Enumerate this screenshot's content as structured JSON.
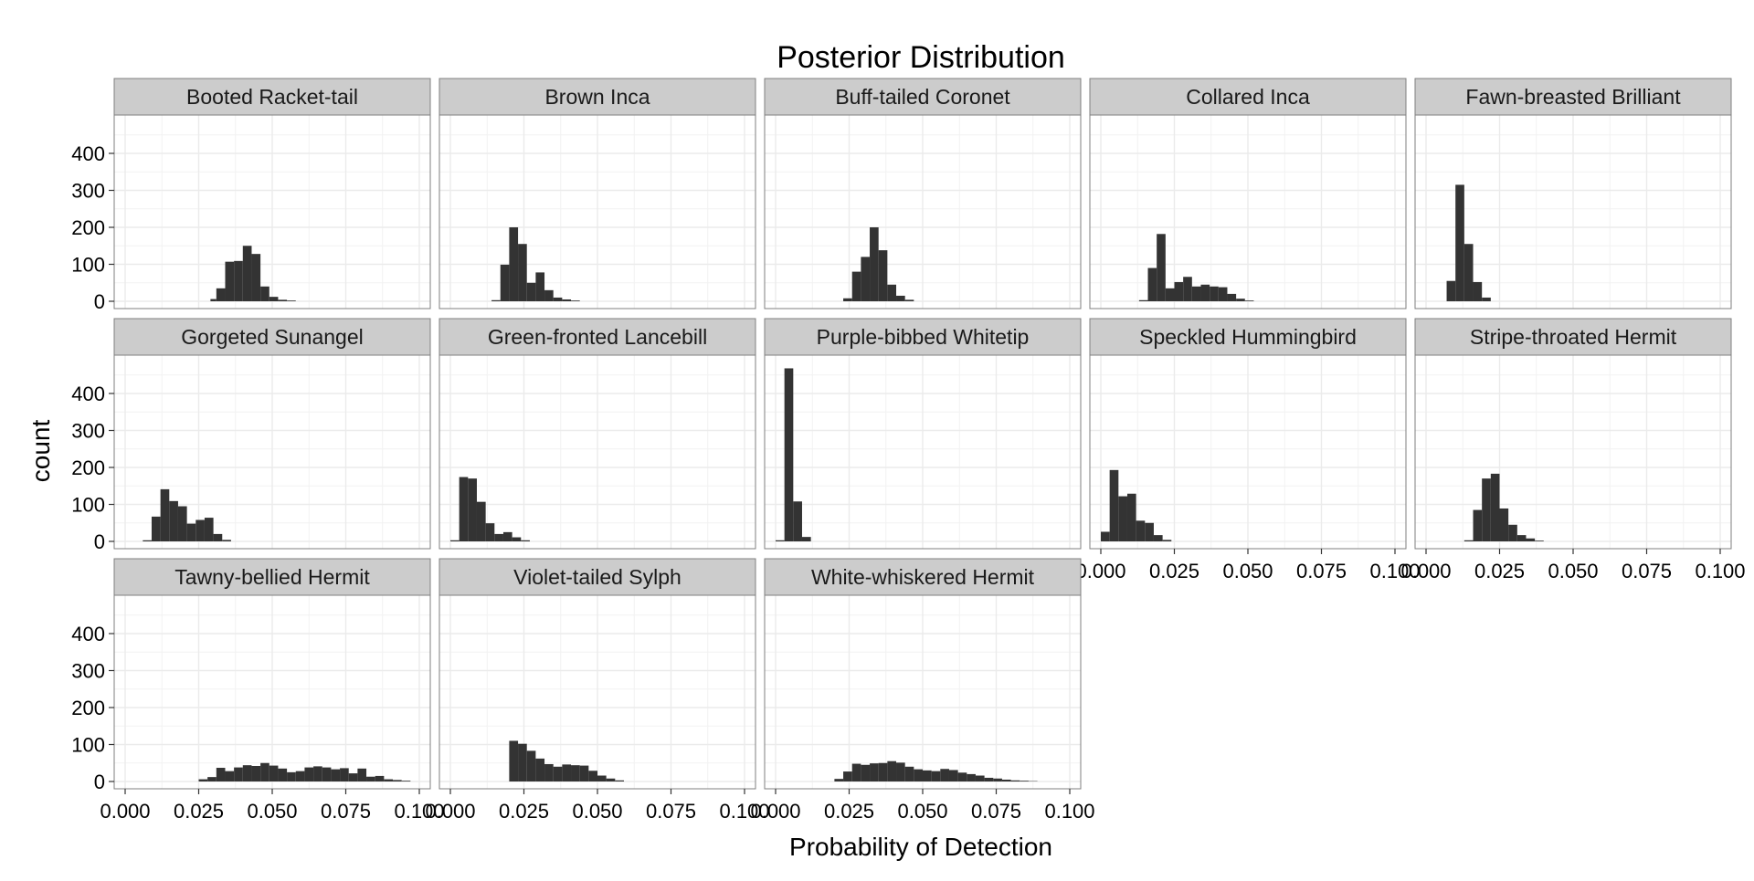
{
  "chart_data": {
    "type": "bar",
    "subtype": "faceted-histogram",
    "title": "Posterior Distribution",
    "xlabel": "Probability of Detection",
    "ylabel": "count",
    "xlim": [
      0,
      0.1
    ],
    "ylim": [
      0,
      500
    ],
    "x_ticks": [
      "0.000",
      "0.025",
      "0.050",
      "0.075",
      "0.100"
    ],
    "x_tick_values": [
      0,
      0.025,
      0.05,
      0.075,
      0.1
    ],
    "y_ticks": [
      "0",
      "100",
      "200",
      "300",
      "400"
    ],
    "y_tick_values": [
      0,
      100,
      200,
      300,
      400
    ],
    "grid": true,
    "bar_color": "#333333",
    "panel_header_color": "#cccccc",
    "gridline_color": "#ebebeb",
    "panels": [
      {
        "name": "Booted Racket-tail",
        "bins": [
          [
            0.029,
            0.031,
            6
          ],
          [
            0.031,
            0.034,
            35
          ],
          [
            0.034,
            0.037,
            107
          ],
          [
            0.037,
            0.04,
            109
          ],
          [
            0.04,
            0.043,
            150
          ],
          [
            0.043,
            0.046,
            128
          ],
          [
            0.046,
            0.049,
            40
          ],
          [
            0.049,
            0.052,
            12
          ],
          [
            0.052,
            0.055,
            4
          ],
          [
            0.055,
            0.058,
            2
          ]
        ]
      },
      {
        "name": "Brown Inca",
        "bins": [
          [
            0.014,
            0.017,
            3
          ],
          [
            0.017,
            0.02,
            99
          ],
          [
            0.02,
            0.023,
            200
          ],
          [
            0.023,
            0.026,
            155
          ],
          [
            0.026,
            0.029,
            50
          ],
          [
            0.029,
            0.032,
            78
          ],
          [
            0.032,
            0.035,
            30
          ],
          [
            0.035,
            0.038,
            10
          ],
          [
            0.038,
            0.041,
            5
          ],
          [
            0.041,
            0.044,
            2
          ]
        ]
      },
      {
        "name": "Buff-tailed Coronet",
        "bins": [
          [
            0.023,
            0.026,
            8
          ],
          [
            0.026,
            0.029,
            80
          ],
          [
            0.029,
            0.032,
            120
          ],
          [
            0.032,
            0.035,
            200
          ],
          [
            0.035,
            0.038,
            138
          ],
          [
            0.038,
            0.041,
            45
          ],
          [
            0.041,
            0.044,
            15
          ],
          [
            0.044,
            0.047,
            4
          ]
        ]
      },
      {
        "name": "Collared Inca",
        "bins": [
          [
            0.013,
            0.016,
            3
          ],
          [
            0.016,
            0.019,
            90
          ],
          [
            0.019,
            0.022,
            182
          ],
          [
            0.022,
            0.025,
            35
          ],
          [
            0.025,
            0.028,
            52
          ],
          [
            0.028,
            0.031,
            66
          ],
          [
            0.031,
            0.034,
            40
          ],
          [
            0.034,
            0.037,
            45
          ],
          [
            0.037,
            0.04,
            40
          ],
          [
            0.04,
            0.043,
            38
          ],
          [
            0.043,
            0.046,
            20
          ],
          [
            0.046,
            0.049,
            7
          ],
          [
            0.049,
            0.052,
            2
          ]
        ]
      },
      {
        "name": "Fawn-breasted Brilliant",
        "bins": [
          [
            0.007,
            0.01,
            55
          ],
          [
            0.01,
            0.013,
            315
          ],
          [
            0.013,
            0.016,
            155
          ],
          [
            0.016,
            0.019,
            52
          ],
          [
            0.019,
            0.022,
            10
          ]
        ]
      },
      {
        "name": "Gorgeted Sunangel",
        "bins": [
          [
            0.006,
            0.009,
            3
          ],
          [
            0.009,
            0.012,
            67
          ],
          [
            0.012,
            0.015,
            141
          ],
          [
            0.015,
            0.018,
            109
          ],
          [
            0.018,
            0.021,
            95
          ],
          [
            0.021,
            0.024,
            48
          ],
          [
            0.024,
            0.027,
            58
          ],
          [
            0.027,
            0.03,
            64
          ],
          [
            0.03,
            0.033,
            20
          ],
          [
            0.033,
            0.036,
            4
          ]
        ]
      },
      {
        "name": "Green-fronted Lancebill",
        "bins": [
          [
            0.0,
            0.003,
            3
          ],
          [
            0.003,
            0.006,
            174
          ],
          [
            0.006,
            0.009,
            170
          ],
          [
            0.009,
            0.012,
            107
          ],
          [
            0.012,
            0.015,
            49
          ],
          [
            0.015,
            0.018,
            20
          ],
          [
            0.018,
            0.021,
            25
          ],
          [
            0.021,
            0.024,
            11
          ],
          [
            0.024,
            0.027,
            3
          ]
        ]
      },
      {
        "name": "Purple-bibbed Whitetip",
        "bins": [
          [
            0.0,
            0.003,
            3
          ],
          [
            0.003,
            0.006,
            468
          ],
          [
            0.006,
            0.009,
            108
          ],
          [
            0.009,
            0.012,
            12
          ]
        ]
      },
      {
        "name": "Speckled Hummingbird",
        "bins": [
          [
            0.0,
            0.003,
            26
          ],
          [
            0.003,
            0.006,
            193
          ],
          [
            0.006,
            0.009,
            122
          ],
          [
            0.009,
            0.012,
            129
          ],
          [
            0.012,
            0.015,
            56
          ],
          [
            0.015,
            0.018,
            50
          ],
          [
            0.018,
            0.021,
            17
          ],
          [
            0.021,
            0.024,
            4
          ]
        ]
      },
      {
        "name": "Stripe-throated Hermit",
        "bins": [
          [
            0.013,
            0.016,
            3
          ],
          [
            0.016,
            0.019,
            85
          ],
          [
            0.019,
            0.022,
            170
          ],
          [
            0.022,
            0.025,
            183
          ],
          [
            0.025,
            0.028,
            89
          ],
          [
            0.028,
            0.031,
            45
          ],
          [
            0.031,
            0.034,
            17
          ],
          [
            0.034,
            0.037,
            8
          ],
          [
            0.037,
            0.04,
            2
          ]
        ]
      },
      {
        "name": "Tawny-bellied Hermit",
        "bins": [
          [
            0.025,
            0.028,
            6
          ],
          [
            0.028,
            0.031,
            12
          ],
          [
            0.031,
            0.034,
            37
          ],
          [
            0.034,
            0.037,
            28
          ],
          [
            0.037,
            0.04,
            38
          ],
          [
            0.04,
            0.043,
            44
          ],
          [
            0.043,
            0.046,
            42
          ],
          [
            0.046,
            0.049,
            50
          ],
          [
            0.049,
            0.052,
            43
          ],
          [
            0.052,
            0.055,
            35
          ],
          [
            0.055,
            0.058,
            25
          ],
          [
            0.058,
            0.061,
            28
          ],
          [
            0.061,
            0.064,
            38
          ],
          [
            0.064,
            0.067,
            41
          ],
          [
            0.067,
            0.07,
            38
          ],
          [
            0.07,
            0.073,
            33
          ],
          [
            0.073,
            0.076,
            36
          ],
          [
            0.076,
            0.079,
            22
          ],
          [
            0.079,
            0.082,
            35
          ],
          [
            0.082,
            0.085,
            13
          ],
          [
            0.085,
            0.088,
            15
          ],
          [
            0.088,
            0.091,
            6
          ],
          [
            0.091,
            0.094,
            4
          ],
          [
            0.094,
            0.097,
            2
          ]
        ]
      },
      {
        "name": "Violet-tailed Sylph",
        "bins": [
          [
            0.02,
            0.023,
            110
          ],
          [
            0.023,
            0.026,
            102
          ],
          [
            0.026,
            0.029,
            83
          ],
          [
            0.029,
            0.032,
            62
          ],
          [
            0.032,
            0.035,
            47
          ],
          [
            0.035,
            0.038,
            40
          ],
          [
            0.038,
            0.041,
            46
          ],
          [
            0.041,
            0.044,
            44
          ],
          [
            0.044,
            0.047,
            43
          ],
          [
            0.047,
            0.05,
            29
          ],
          [
            0.05,
            0.053,
            16
          ],
          [
            0.053,
            0.056,
            8
          ],
          [
            0.056,
            0.059,
            3
          ]
        ]
      },
      {
        "name": "White-whiskered Hermit",
        "bins": [
          [
            0.02,
            0.023,
            7
          ],
          [
            0.023,
            0.026,
            27
          ],
          [
            0.026,
            0.029,
            48
          ],
          [
            0.029,
            0.032,
            45
          ],
          [
            0.032,
            0.035,
            49
          ],
          [
            0.035,
            0.038,
            50
          ],
          [
            0.038,
            0.041,
            55
          ],
          [
            0.041,
            0.044,
            51
          ],
          [
            0.044,
            0.047,
            40
          ],
          [
            0.047,
            0.05,
            33
          ],
          [
            0.05,
            0.053,
            30
          ],
          [
            0.053,
            0.056,
            28
          ],
          [
            0.056,
            0.059,
            34
          ],
          [
            0.059,
            0.062,
            31
          ],
          [
            0.062,
            0.065,
            24
          ],
          [
            0.065,
            0.068,
            20
          ],
          [
            0.068,
            0.071,
            16
          ],
          [
            0.071,
            0.074,
            10
          ],
          [
            0.074,
            0.077,
            8
          ],
          [
            0.077,
            0.08,
            5
          ],
          [
            0.08,
            0.083,
            3
          ],
          [
            0.083,
            0.086,
            2
          ],
          [
            0.086,
            0.089,
            1
          ]
        ]
      }
    ]
  }
}
